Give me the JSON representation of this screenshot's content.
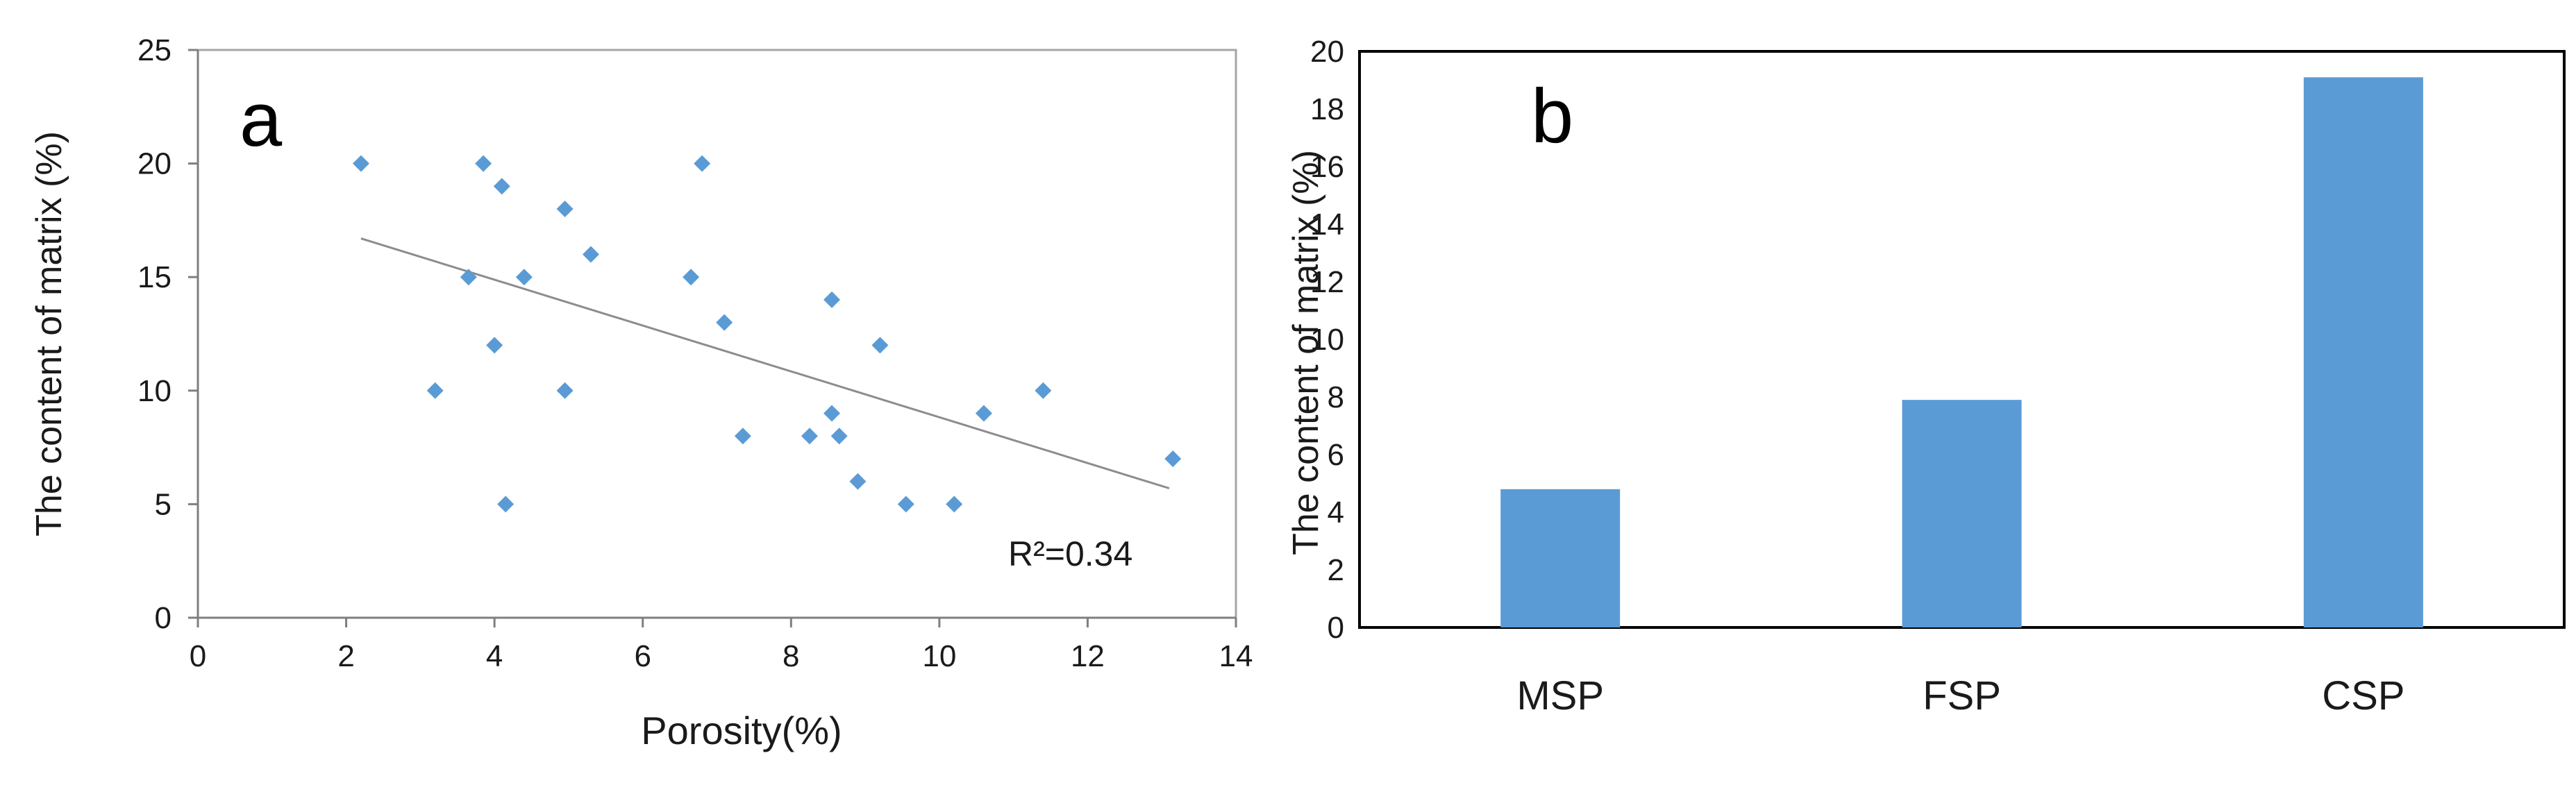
{
  "chart_data": [
    {
      "panel_label": "a",
      "type": "scatter",
      "title": "",
      "xlabel": "Porosity(%)",
      "ylabel": "The content of matrix (%)",
      "xlim": [
        0,
        14
      ],
      "ylim": [
        0,
        25
      ],
      "xticks": [
        0,
        2,
        4,
        6,
        8,
        10,
        12,
        14
      ],
      "yticks": [
        0,
        5,
        10,
        15,
        20,
        25
      ],
      "grid": false,
      "marker_color": "#5b9bd5",
      "trendline_color": "#8c8c8c",
      "points": [
        {
          "x": 2.2,
          "y": 20
        },
        {
          "x": 3.2,
          "y": 10
        },
        {
          "x": 3.65,
          "y": 15
        },
        {
          "x": 3.85,
          "y": 20
        },
        {
          "x": 4.0,
          "y": 12
        },
        {
          "x": 4.1,
          "y": 19
        },
        {
          "x": 4.15,
          "y": 5
        },
        {
          "x": 4.4,
          "y": 15
        },
        {
          "x": 4.95,
          "y": 18
        },
        {
          "x": 4.95,
          "y": 10
        },
        {
          "x": 5.3,
          "y": 16
        },
        {
          "x": 6.65,
          "y": 15
        },
        {
          "x": 6.8,
          "y": 20
        },
        {
          "x": 7.1,
          "y": 13
        },
        {
          "x": 7.35,
          "y": 8
        },
        {
          "x": 8.25,
          "y": 8
        },
        {
          "x": 8.55,
          "y": 9
        },
        {
          "x": 8.55,
          "y": 14
        },
        {
          "x": 8.65,
          "y": 8
        },
        {
          "x": 8.9,
          "y": 6
        },
        {
          "x": 9.2,
          "y": 12
        },
        {
          "x": 9.55,
          "y": 5
        },
        {
          "x": 10.2,
          "y": 5
        },
        {
          "x": 10.6,
          "y": 9
        },
        {
          "x": 11.4,
          "y": 10
        },
        {
          "x": 13.15,
          "y": 7
        }
      ],
      "trendline": {
        "x": [
          2.2,
          13.1
        ],
        "y": [
          16.7,
          5.7
        ]
      },
      "r2_label": "R²=0.34"
    },
    {
      "panel_label": "b",
      "type": "bar",
      "title": "",
      "xlabel": "",
      "ylabel": "The content of matrix (%)",
      "categories": [
        "MSP",
        "FSP",
        "CSP"
      ],
      "values": [
        4.8,
        7.9,
        19.1
      ],
      "ylim": [
        0,
        20
      ],
      "yticks": [
        0,
        2,
        4,
        6,
        8,
        10,
        12,
        14,
        16,
        18,
        20
      ],
      "grid": false,
      "bar_color": "#5b9bd5"
    }
  ]
}
